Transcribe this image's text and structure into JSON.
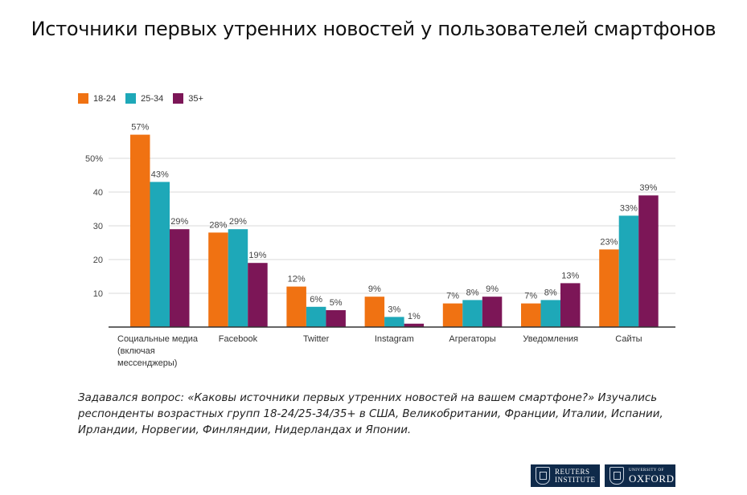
{
  "title": "Источники первых утренних новостей у пользователей смартфонов",
  "note": "Задавался вопрос: «Каковы источники первых утренних новостей на вашем смартфоне?» Изучались респонденты возрастных групп 18-24/25-34/35+ в США, Великобритании, Франции, Италии, Испании, Ирландии, Норвегии, Финляндии, Нидерландах и Японии.",
  "logos": {
    "reuters_line1": "REUTERS",
    "reuters_line2": "INSTITUTE",
    "oxford_line1": "UNIVERSITY OF",
    "oxford_line2": "OXFORD"
  },
  "chart_data": {
    "type": "bar",
    "categories": [
      [
        "Социальные медиа",
        "(включая",
        "мессенджеры)"
      ],
      [
        "Facebook"
      ],
      [
        "Twitter"
      ],
      [
        "Instagram"
      ],
      [
        "Агрегаторы"
      ],
      [
        "Уведомления"
      ],
      [
        "Сайты"
      ]
    ],
    "series": [
      {
        "name": "18-24",
        "color": "#f07212",
        "values": [
          57,
          28,
          12,
          9,
          7,
          7,
          23
        ],
        "labels": [
          "57%",
          "28%",
          "12%",
          "9%",
          "7%",
          "7%",
          "23%"
        ]
      },
      {
        "name": "25-34",
        "color": "#1ea8b8",
        "values": [
          43,
          29,
          6,
          3,
          8,
          8,
          33
        ],
        "labels": [
          "43%",
          "29%",
          "6%",
          "3%",
          "8%",
          "8%",
          "33%"
        ]
      },
      {
        "name": "35+",
        "color": "#7c1657",
        "values": [
          29,
          19,
          5,
          1,
          9,
          13,
          39
        ],
        "labels": [
          "29%",
          "19%",
          "5%",
          "1%",
          "9%",
          "13%",
          "39%"
        ]
      }
    ],
    "yticks": [
      {
        "value": 10,
        "label": "10"
      },
      {
        "value": 20,
        "label": "20"
      },
      {
        "value": 30,
        "label": "30"
      },
      {
        "value": 40,
        "label": "40"
      },
      {
        "value": 50,
        "label": "50%"
      }
    ],
    "ylim": [
      0,
      60
    ],
    "grid": true,
    "legend_position": "top-left"
  }
}
